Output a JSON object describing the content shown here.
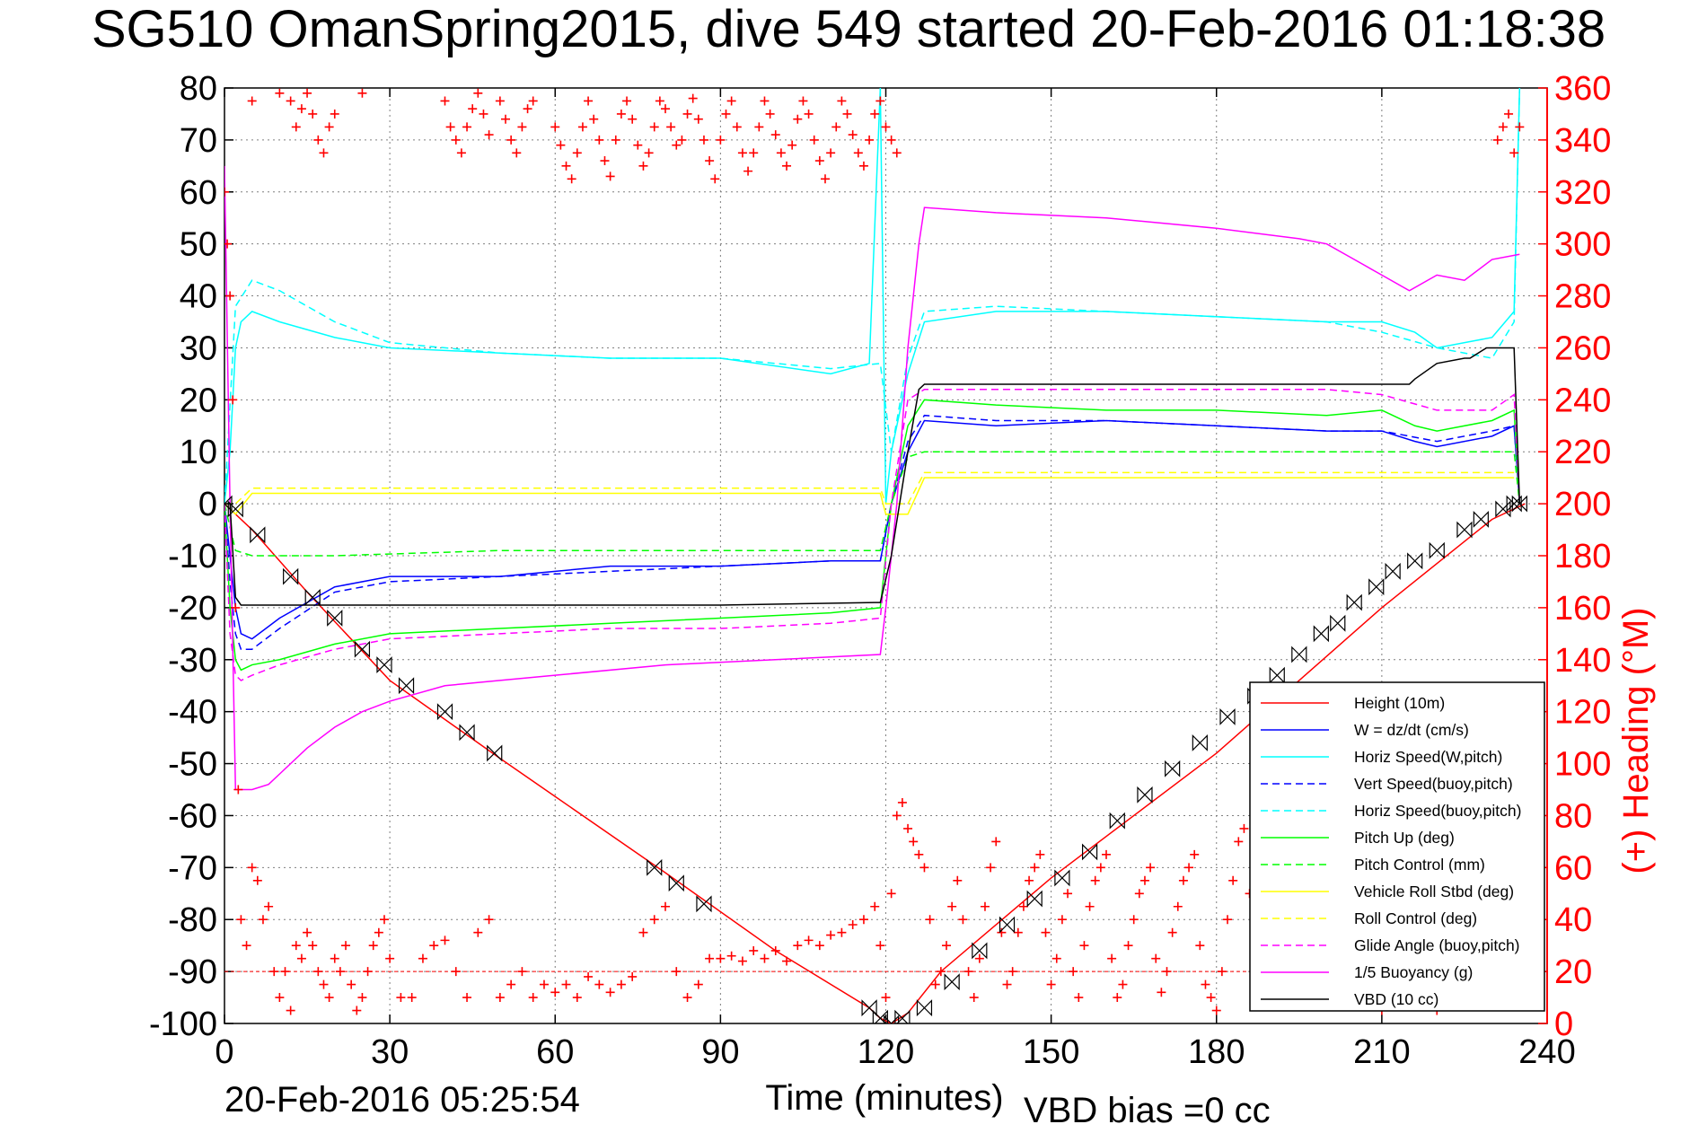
{
  "colors": {
    "height": "#ff0000",
    "w": "#0000ff",
    "horiz_w": "#00ffff",
    "vert_buoy": "#0000ff",
    "horiz_buoy": "#00ffff",
    "pitch_up": "#00ff00",
    "pitch_control": "#00ff00",
    "roll_stbd": "#ffff00",
    "roll_control": "#ffff00",
    "glide_angle": "#ff00ff",
    "buoyancy": "#ff00ff",
    "vbd": "#000000",
    "heading": "#ff0000",
    "right_axis": "#ff0000"
  },
  "chart_data": {
    "type": "line",
    "title": "SG510 OmanSpring2015, dive 549 started 20-Feb-2016 01:18:38",
    "xlabel": "Time (minutes)",
    "ylabel": "",
    "y2label": "(+) Heading (°M)",
    "footer_left": "20-Feb-2016 05:25:54",
    "footer_right": "VBD bias =0 cc",
    "xlim": [
      0,
      240
    ],
    "ylim": [
      -100,
      80
    ],
    "y2lim": [
      0,
      360
    ],
    "xticks": [
      0,
      30,
      60,
      90,
      120,
      150,
      180,
      210,
      240
    ],
    "yticks": [
      80,
      70,
      60,
      50,
      40,
      30,
      20,
      10,
      0,
      -10,
      -20,
      -30,
      -40,
      -50,
      -60,
      -70,
      -80,
      -90,
      -100
    ],
    "y2ticks": [
      360,
      340,
      320,
      300,
      280,
      260,
      240,
      220,
      200,
      180,
      160,
      140,
      120,
      100,
      80,
      60,
      40,
      20,
      0
    ],
    "grid": true,
    "legend_position": "bottom-right",
    "series": [
      {
        "key": "height",
        "name": "Height (10m)",
        "style": "solid",
        "x": [
          0,
          5,
          15,
          30,
          50,
          80,
          100,
          117,
          119,
          121,
          124,
          130,
          150,
          180,
          210,
          230,
          236
        ],
        "y": [
          0,
          -5,
          -17,
          -34,
          -49,
          -71,
          -86,
          -97,
          -99,
          -100,
          -98,
          -90,
          -72,
          -48,
          -20,
          -3,
          0
        ]
      },
      {
        "key": "w",
        "name": "W = dz/dt (cm/s)",
        "style": "solid",
        "x": [
          0,
          1,
          2,
          3,
          5,
          10,
          20,
          30,
          50,
          70,
          90,
          110,
          119,
          121,
          124,
          127,
          140,
          160,
          180,
          200,
          210,
          216,
          220,
          230,
          234,
          235
        ],
        "y": [
          0,
          -10,
          -20,
          -25,
          -26,
          -22,
          -16,
          -14,
          -14,
          -12,
          -12,
          -11,
          -11,
          0,
          10,
          16,
          15,
          16,
          15,
          14,
          14,
          12,
          11,
          13,
          15,
          0
        ]
      },
      {
        "key": "horiz_w",
        "name": "Horiz Speed(W,pitch)",
        "style": "solid",
        "x": [
          0,
          1,
          2,
          3,
          5,
          10,
          20,
          30,
          50,
          70,
          90,
          110,
          117,
          119,
          120,
          121,
          124,
          127,
          140,
          160,
          180,
          200,
          210,
          216,
          220,
          230,
          234,
          235
        ],
        "y": [
          0,
          10,
          30,
          35,
          37,
          35,
          32,
          30,
          29,
          28,
          28,
          25,
          27,
          80,
          0,
          10,
          25,
          35,
          37,
          37,
          36,
          35,
          35,
          33,
          30,
          32,
          37,
          80
        ]
      },
      {
        "key": "vert_buoy",
        "name": "Vert Speed(buoy,pitch)",
        "style": "dashed",
        "x": [
          0,
          1,
          2,
          3,
          5,
          10,
          20,
          30,
          50,
          70,
          90,
          110,
          119,
          121,
          124,
          127,
          140,
          160,
          180,
          200,
          210,
          220,
          230,
          234,
          235
        ],
        "y": [
          0,
          -15,
          -25,
          -28,
          -28,
          -24,
          -17,
          -15,
          -14,
          -13,
          -12,
          -11,
          -11,
          0,
          12,
          17,
          16,
          16,
          15,
          14,
          14,
          12,
          14,
          15,
          0
        ]
      },
      {
        "key": "horiz_buoy",
        "name": "Horiz Speed(buoy,pitch)",
        "style": "dashed",
        "x": [
          0,
          2,
          5,
          10,
          20,
          30,
          50,
          70,
          90,
          110,
          119,
          121,
          124,
          127,
          140,
          160,
          180,
          200,
          210,
          220,
          230,
          234,
          235
        ],
        "y": [
          0,
          38,
          43,
          41,
          35,
          31,
          29,
          28,
          28,
          26,
          27,
          10,
          28,
          37,
          38,
          37,
          36,
          35,
          33,
          30,
          28,
          35,
          80
        ]
      },
      {
        "key": "pitch_up",
        "name": "Pitch Up (deg)",
        "style": "solid",
        "x": [
          0,
          1,
          2,
          3,
          5,
          10,
          20,
          30,
          50,
          70,
          90,
          110,
          119,
          121,
          124,
          127,
          140,
          160,
          180,
          200,
          210,
          216,
          220,
          230,
          234,
          235
        ],
        "y": [
          0,
          -20,
          -30,
          -32,
          -31,
          -30,
          -27,
          -25,
          -24,
          -23,
          -22,
          -21,
          -20,
          0,
          15,
          20,
          19,
          18,
          18,
          17,
          18,
          15,
          14,
          16,
          18,
          0
        ]
      },
      {
        "key": "pitch_control",
        "name": "Pitch Control (mm)",
        "style": "dashed",
        "x": [
          0,
          2,
          5,
          20,
          50,
          90,
          119,
          121,
          124,
          127,
          160,
          200,
          234,
          235
        ],
        "y": [
          0,
          -9,
          -10,
          -10,
          -9,
          -9,
          -9,
          0,
          9,
          10,
          10,
          10,
          10,
          0
        ]
      },
      {
        "key": "roll_stbd",
        "name": "Vehicle Roll Stbd (deg)",
        "style": "solid",
        "x": [
          0,
          2,
          5,
          119,
          120,
          124,
          127,
          234
        ],
        "y": [
          0,
          -2,
          2,
          2,
          -2,
          -2,
          5,
          5
        ]
      },
      {
        "key": "roll_control",
        "name": "Roll Control (deg)",
        "style": "dashed",
        "x": [
          0,
          2,
          5,
          119,
          120,
          124,
          127,
          234
        ],
        "y": [
          0,
          0,
          3,
          3,
          0,
          0,
          6,
          6
        ]
      },
      {
        "key": "glide_angle",
        "name": "Glide Angle (buoy,pitch)",
        "style": "dashed",
        "x": [
          0,
          1,
          2,
          3,
          5,
          10,
          20,
          30,
          50,
          70,
          90,
          110,
          119,
          121,
          124,
          127,
          140,
          160,
          180,
          200,
          210,
          220,
          230,
          234,
          235
        ],
        "y": [
          0,
          -25,
          -33,
          -34,
          -33,
          -31,
          -28,
          -26,
          -25,
          -24,
          -24,
          -23,
          -22,
          0,
          20,
          22,
          22,
          22,
          22,
          22,
          21,
          18,
          18,
          21,
          0
        ]
      },
      {
        "key": "buoyancy",
        "name": "1/5 Buoyancy (g)",
        "style": "solid",
        "x": [
          0,
          1,
          2,
          5,
          8,
          10,
          15,
          20,
          25,
          30,
          40,
          50,
          60,
          80,
          100,
          119,
          120,
          122,
          124,
          126,
          127,
          140,
          160,
          180,
          195,
          200,
          205,
          210,
          215,
          220,
          225,
          230,
          235
        ],
        "y": [
          65,
          0,
          -55,
          -55,
          -54,
          -52,
          -47,
          -43,
          -40,
          -38,
          -35,
          -34,
          -33,
          -31,
          -30,
          -29,
          -20,
          0,
          30,
          50,
          57,
          56,
          55,
          53,
          51,
          50,
          47,
          44,
          41,
          44,
          43,
          47,
          48
        ]
      },
      {
        "key": "vbd",
        "name": "VBD (10 cc)",
        "style": "solid",
        "x": [
          0,
          1,
          2,
          3,
          50,
          90,
          118,
          119,
          121,
          124,
          126,
          127,
          180,
          215,
          216,
          220,
          225,
          226,
          229,
          230,
          234,
          235
        ],
        "y": [
          0,
          0,
          -18,
          -19.5,
          -19.5,
          -19.5,
          -19,
          -19,
          -10,
          10,
          22,
          23,
          23,
          23,
          24,
          27,
          28,
          28,
          30,
          30,
          30,
          0
        ]
      }
    ],
    "markers": {
      "name": "height-markers",
      "x": [
        0,
        2,
        6,
        12,
        16,
        20,
        25,
        29,
        33,
        40,
        44,
        49,
        78,
        82,
        87,
        117,
        119,
        121,
        123,
        127,
        132,
        137,
        142,
        147,
        152,
        157,
        162,
        167,
        172,
        177,
        182,
        187,
        191,
        195,
        199,
        202,
        205,
        209,
        212,
        216,
        220,
        225,
        228,
        232,
        234,
        235
      ],
      "y": [
        0,
        -1,
        -6,
        -14,
        -18,
        -22,
        -28,
        -31,
        -35,
        -40,
        -44,
        -48,
        -70,
        -73,
        -77,
        -97,
        -99,
        -100,
        -99,
        -97,
        -92,
        -86,
        -81,
        -76,
        -72,
        -67,
        -61,
        -56,
        -51,
        -46,
        -41,
        -37,
        -33,
        -29,
        -25,
        -23,
        -19,
        -16,
        -13,
        -11,
        -9,
        -5,
        -3,
        -1,
        0,
        0
      ]
    },
    "heading": {
      "name": "heading",
      "x": [
        0,
        0.5,
        1,
        1.5,
        2,
        2.5,
        3,
        4,
        5,
        6,
        7,
        8,
        9,
        10,
        11,
        12,
        13,
        14,
        15,
        16,
        17,
        18,
        19,
        20,
        21,
        22,
        23,
        24,
        25,
        26,
        27,
        28,
        29,
        30,
        32,
        34,
        36,
        38,
        40,
        42,
        44,
        46,
        48,
        50,
        52,
        54,
        56,
        58,
        60,
        62,
        64,
        66,
        68,
        70,
        72,
        74,
        76,
        78,
        80,
        82,
        84,
        86,
        88,
        90,
        92,
        94,
        96,
        98,
        100,
        102,
        104,
        106,
        108,
        110,
        112,
        114,
        116,
        118,
        119,
        120,
        121,
        122,
        123,
        124,
        125,
        126,
        127,
        128,
        129,
        130,
        131,
        132,
        133,
        134,
        135,
        136,
        137,
        138,
        139,
        140,
        141,
        142,
        143,
        144,
        145,
        146,
        147,
        148,
        149,
        150,
        151,
        152,
        153,
        154,
        155,
        156,
        157,
        158,
        159,
        160,
        161,
        162,
        163,
        164,
        165,
        166,
        167,
        168,
        169,
        170,
        171,
        172,
        173,
        174,
        175,
        176,
        177,
        178,
        179,
        180,
        181,
        182,
        183,
        184,
        185,
        186,
        187,
        188,
        189,
        190,
        191,
        192,
        193,
        194,
        195,
        196,
        197,
        198,
        199,
        200,
        201,
        202,
        203,
        204,
        205,
        206,
        207,
        208,
        209,
        210,
        211,
        212,
        213,
        214,
        215,
        216,
        217,
        218,
        219,
        220,
        221,
        222,
        223,
        224,
        225,
        226,
        227,
        228,
        229,
        230,
        231,
        232,
        233,
        234,
        235
      ],
      "y": [
        320,
        300,
        280,
        240,
        160,
        90,
        40,
        30,
        60,
        55,
        40,
        45,
        20,
        10,
        20,
        5,
        30,
        25,
        35,
        30,
        20,
        15,
        10,
        25,
        20,
        30,
        15,
        5,
        10,
        20,
        30,
        35,
        40,
        25,
        10,
        10,
        25,
        30,
        32,
        20,
        10,
        35,
        40,
        10,
        15,
        20,
        10,
        15,
        12,
        15,
        10,
        18,
        15,
        12,
        15,
        18,
        35,
        40,
        45,
        20,
        10,
        15,
        25,
        25,
        26,
        24,
        28,
        25,
        28,
        24,
        30,
        32,
        30,
        34,
        35,
        38,
        40,
        45,
        30,
        10,
        50,
        80,
        85,
        75,
        70,
        65,
        60,
        40,
        15,
        20,
        30,
        45,
        55,
        40,
        20,
        10,
        25,
        45,
        60,
        70,
        35,
        15,
        20,
        35,
        45,
        55,
        60,
        65,
        35,
        15,
        25,
        40,
        50,
        20,
        10,
        30,
        45,
        55,
        60,
        65,
        25,
        10,
        15,
        30,
        40,
        50,
        55,
        60,
        25,
        12,
        20,
        35,
        45,
        55,
        60,
        65,
        30,
        15,
        10,
        5,
        20,
        40,
        55,
        70,
        75,
        50,
        20,
        15,
        10,
        30,
        50,
        65,
        75,
        80,
        45,
        25,
        20,
        15,
        10,
        20,
        50,
        70,
        80,
        85,
        90,
        55,
        30,
        20,
        10,
        5,
        25,
        55,
        75,
        85,
        90,
        40,
        25,
        15,
        10,
        5,
        60,
        80,
        90,
        95,
        100,
        45,
        30,
        20,
        10,
        20,
        340,
        345,
        350,
        335,
        345
      ],
      "upper_x": [
        5,
        10,
        12,
        13,
        14,
        15,
        16,
        17,
        18,
        19,
        20,
        25,
        40,
        41,
        42,
        43,
        44,
        45,
        46,
        47,
        48,
        50,
        51,
        52,
        53,
        54,
        55,
        56,
        60,
        61,
        62,
        63,
        64,
        65,
        66,
        67,
        68,
        69,
        70,
        71,
        72,
        73,
        74,
        75,
        76,
        77,
        78,
        79,
        80,
        81,
        82,
        83,
        84,
        85,
        86,
        87,
        88,
        89,
        90,
        91,
        92,
        93,
        94,
        95,
        96,
        97,
        98,
        99,
        100,
        101,
        102,
        103,
        104,
        105,
        106,
        107,
        108,
        109,
        110,
        111,
        112,
        113,
        114,
        115,
        116,
        117,
        118,
        119,
        120,
        121,
        122
      ],
      "upper_y": [
        355,
        358,
        355,
        345,
        352,
        358,
        350,
        340,
        335,
        345,
        350,
        358,
        355,
        345,
        340,
        335,
        345,
        352,
        358,
        350,
        342,
        355,
        348,
        340,
        335,
        345,
        352,
        355,
        345,
        338,
        330,
        325,
        335,
        345,
        355,
        348,
        340,
        332,
        326,
        340,
        350,
        355,
        348,
        338,
        330,
        335,
        345,
        355,
        352,
        345,
        338,
        340,
        350,
        356,
        348,
        340,
        332,
        325,
        340,
        350,
        355,
        345,
        335,
        328,
        335,
        345,
        355,
        350,
        342,
        335,
        330,
        338,
        348,
        355,
        350,
        340,
        332,
        325,
        335,
        345,
        355,
        350,
        342,
        335,
        330,
        340,
        350,
        355,
        345,
        340,
        335
      ]
    },
    "reference_line": {
      "name": "heading-ref",
      "y2": 20
    }
  }
}
